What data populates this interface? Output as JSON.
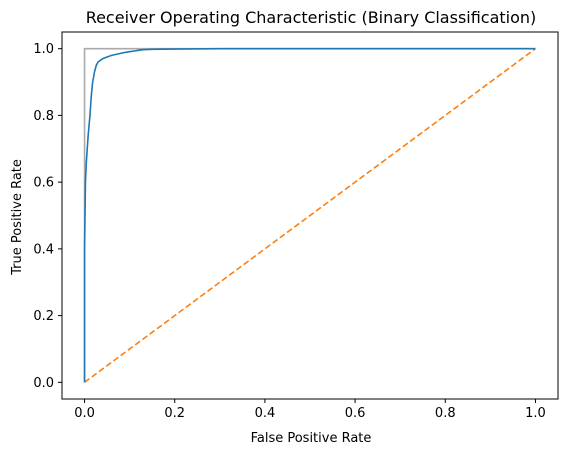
{
  "chart_data": {
    "type": "line",
    "title": "Receiver Operating Characteristic (Binary Classification)",
    "xlabel": "False Positive Rate",
    "ylabel": "True Positive Rate",
    "xlim": [
      -0.05,
      1.05
    ],
    "ylim": [
      -0.05,
      1.05
    ],
    "xticks": [
      "0.0",
      "0.2",
      "0.4",
      "0.6",
      "0.8",
      "1.0"
    ],
    "yticks": [
      "0.0",
      "0.2",
      "0.4",
      "0.6",
      "0.8",
      "1.0"
    ],
    "grid": false,
    "legend": "none",
    "series": [
      {
        "style": "solid",
        "color": "#1f77b4",
        "x": [
          0.0,
          0.0,
          0.002,
          0.004,
          0.006,
          0.008,
          0.01,
          0.012,
          0.015,
          0.018,
          0.022,
          0.026,
          0.03,
          0.035,
          0.04,
          0.05,
          0.06,
          0.07,
          0.08,
          0.09,
          0.1,
          0.11,
          0.12,
          0.13,
          0.15,
          0.2,
          0.3,
          0.5,
          0.8,
          1.0
        ],
        "y": [
          0.0,
          0.4,
          0.6,
          0.66,
          0.7,
          0.74,
          0.77,
          0.8,
          0.86,
          0.9,
          0.93,
          0.95,
          0.96,
          0.965,
          0.97,
          0.975,
          0.98,
          0.983,
          0.986,
          0.989,
          0.991,
          0.993,
          0.995,
          0.997,
          0.998,
          0.999,
          1.0,
          1.0,
          1.0,
          1.0
        ]
      },
      {
        "style": "dashed",
        "color": "#ff7f0e",
        "x": [
          0.0,
          1.0
        ],
        "y": [
          0.0,
          1.0
        ]
      },
      {
        "style": "solid",
        "color": "#aaaaaa",
        "x": [
          0.0,
          0.0,
          1.0
        ],
        "y": [
          0.0,
          1.0,
          1.0
        ]
      }
    ]
  }
}
